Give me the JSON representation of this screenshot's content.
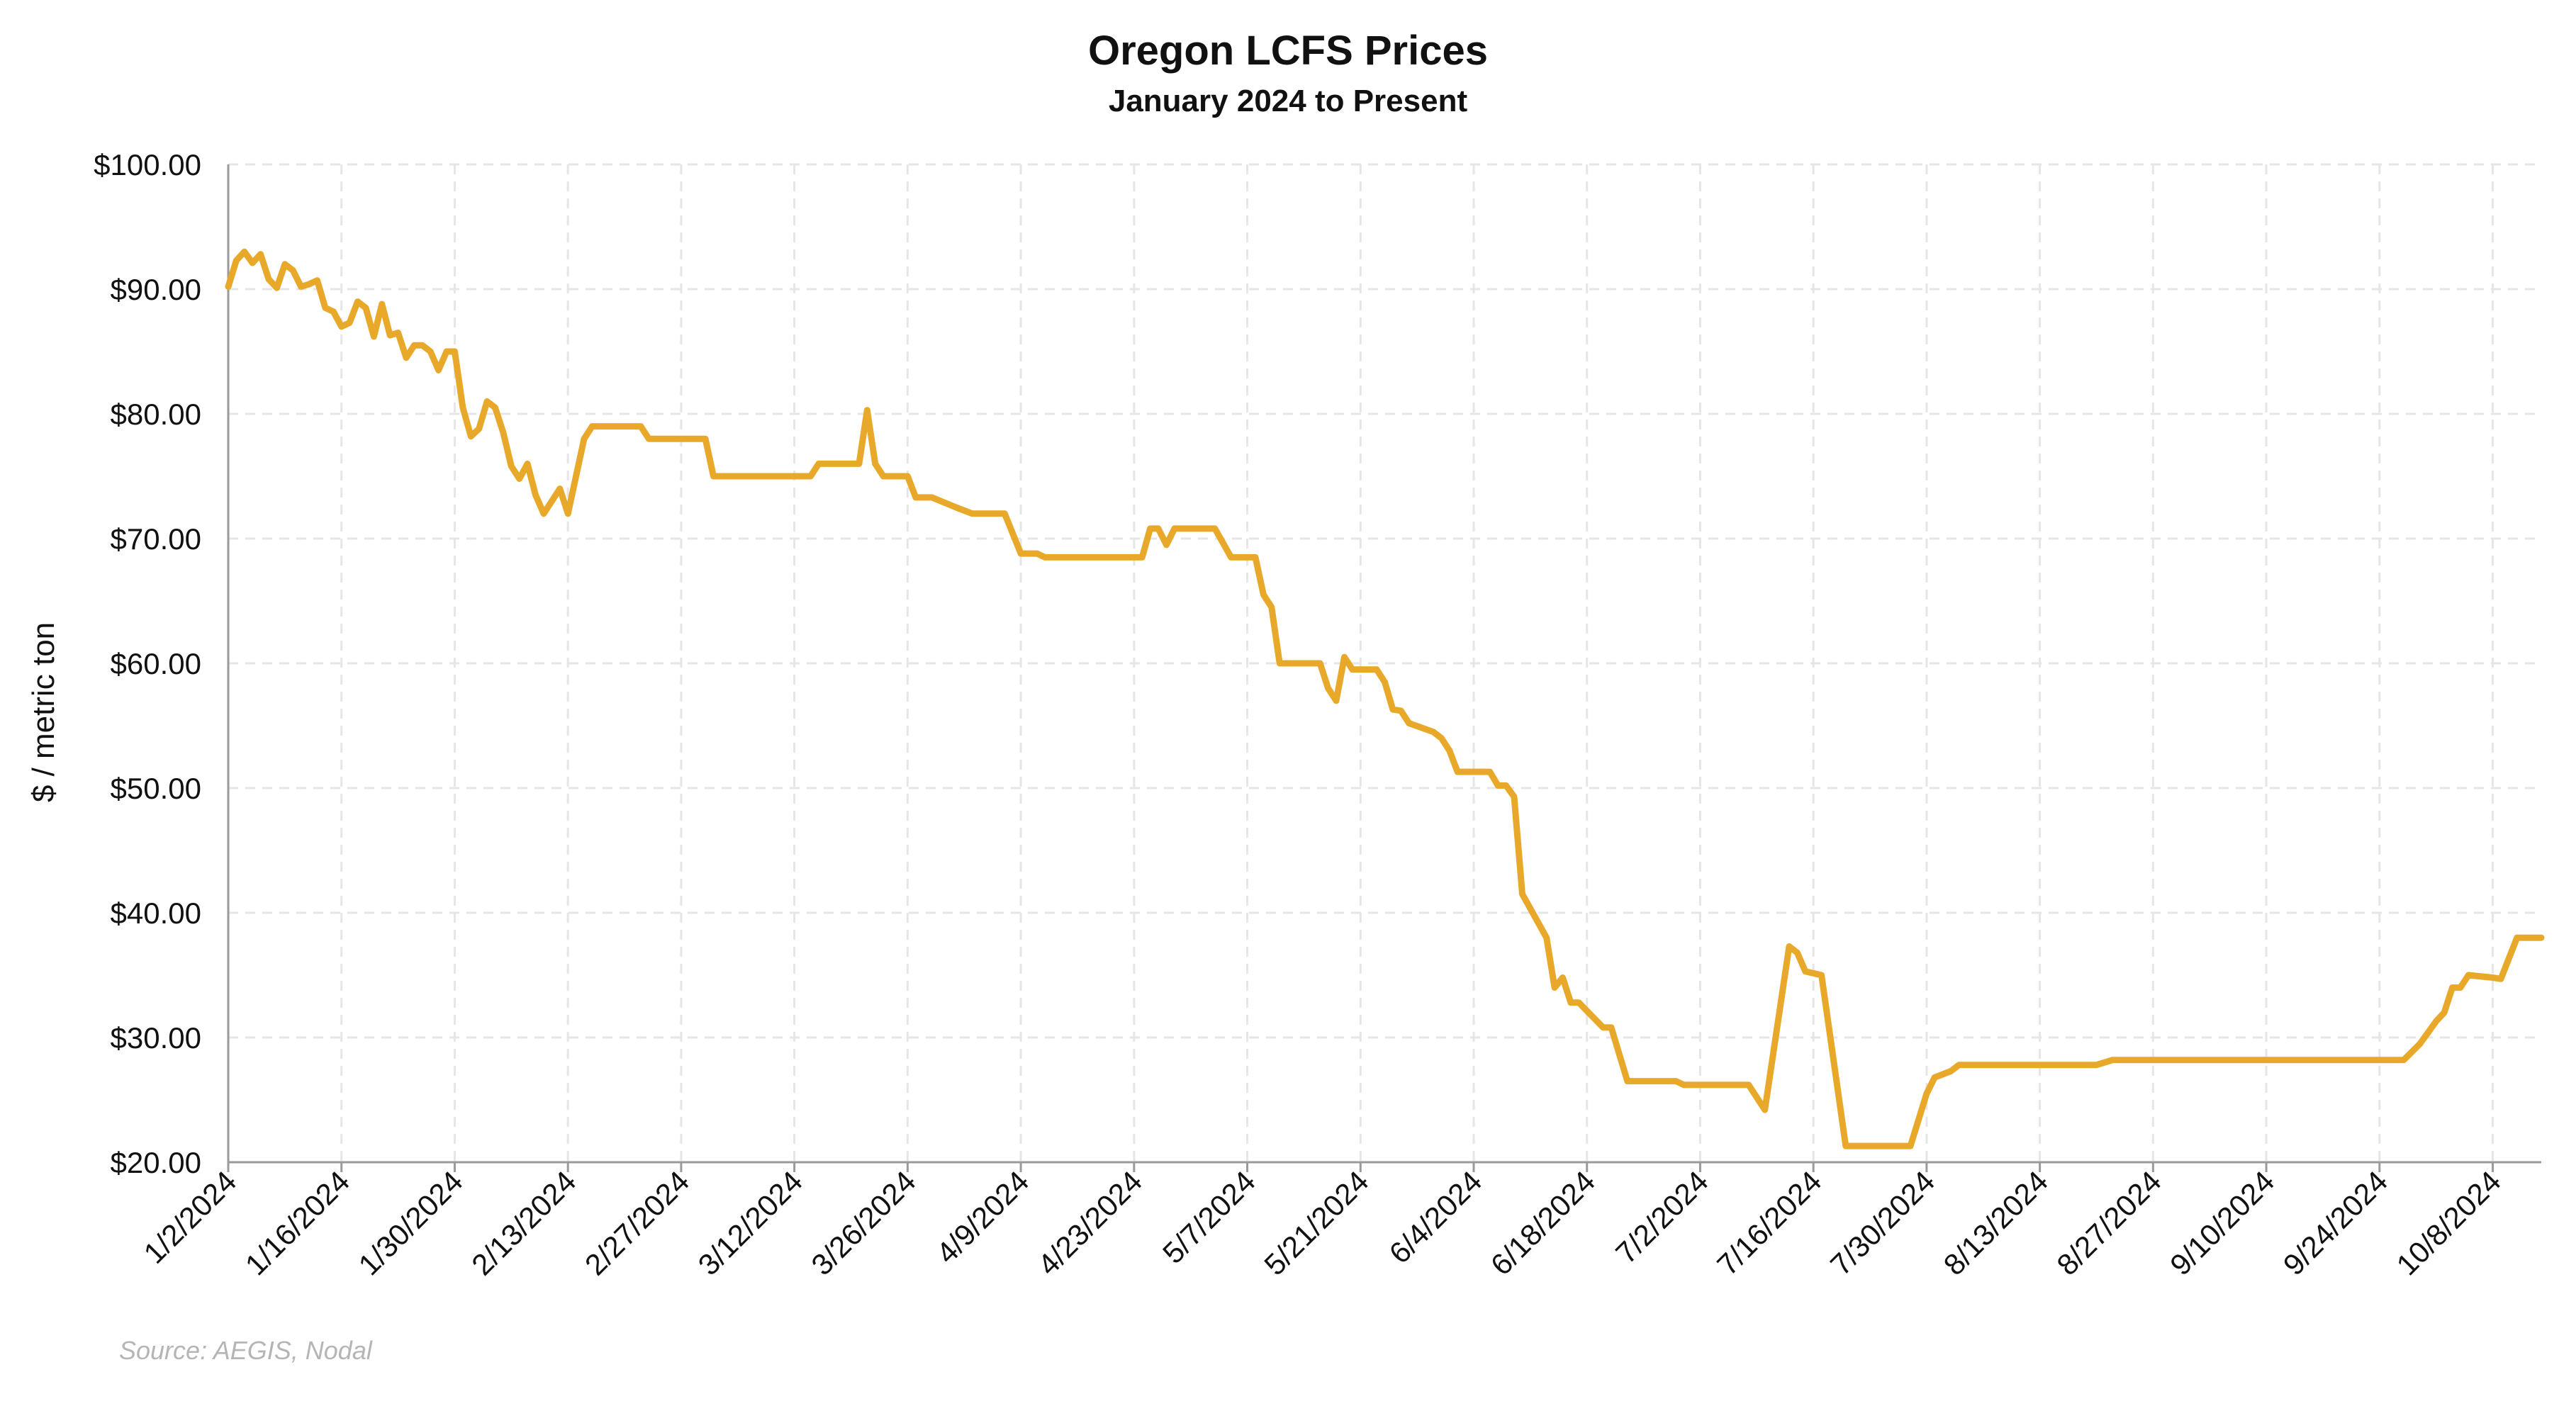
{
  "chart_data": {
    "type": "line",
    "title": "Oregon LCFS Prices",
    "subtitle": "January 2024 to Present",
    "xlabel": "",
    "ylabel": "$ / metric ton",
    "source": "Source: AEGIS, Nodal",
    "ylim": [
      20,
      100
    ],
    "yticks": [
      "$20.00",
      "$30.00",
      "$40.00",
      "$50.00",
      "$60.00",
      "$70.00",
      "$80.00",
      "$90.00",
      "$100.00"
    ],
    "ytick_values": [
      20,
      30,
      40,
      50,
      60,
      70,
      80,
      90,
      100
    ],
    "xlim": [
      "2024-01-02",
      "2024-10-14"
    ],
    "xticks": [
      "1/2/2024",
      "1/16/2024",
      "1/30/2024",
      "2/13/2024",
      "2/27/2024",
      "3/12/2024",
      "3/26/2024",
      "4/9/2024",
      "4/23/2024",
      "5/7/2024",
      "5/21/2024",
      "6/4/2024",
      "6/18/2024",
      "7/2/2024",
      "7/16/2024",
      "7/30/2024",
      "8/13/2024",
      "8/27/2024",
      "9/10/2024",
      "9/24/2024",
      "10/8/2024"
    ],
    "grid": true,
    "line_color": "#E8A92B",
    "series": [
      {
        "points": [
          [
            "2024-01-02",
            90.2
          ],
          [
            "2024-01-03",
            92.3
          ],
          [
            "2024-01-04",
            93.0
          ],
          [
            "2024-01-05",
            92.1
          ],
          [
            "2024-01-06",
            92.8
          ],
          [
            "2024-01-07",
            90.8
          ],
          [
            "2024-01-08",
            90.1
          ],
          [
            "2024-01-09",
            92.0
          ],
          [
            "2024-01-10",
            91.5
          ],
          [
            "2024-01-11",
            90.2
          ],
          [
            "2024-01-12",
            90.4
          ],
          [
            "2024-01-13",
            90.7
          ],
          [
            "2024-01-14",
            88.5
          ],
          [
            "2024-01-15",
            88.2
          ],
          [
            "2024-01-16",
            87.0
          ],
          [
            "2024-01-17",
            87.3
          ],
          [
            "2024-01-18",
            89.0
          ],
          [
            "2024-01-19",
            88.5
          ],
          [
            "2024-01-20",
            86.2
          ],
          [
            "2024-01-21",
            88.8
          ],
          [
            "2024-01-22",
            86.3
          ],
          [
            "2024-01-23",
            86.5
          ],
          [
            "2024-01-24",
            84.5
          ],
          [
            "2024-01-25",
            85.5
          ],
          [
            "2024-01-26",
            85.5
          ],
          [
            "2024-01-27",
            85.0
          ],
          [
            "2024-01-28",
            83.5
          ],
          [
            "2024-01-29",
            85.0
          ],
          [
            "2024-01-30",
            85.0
          ],
          [
            "2024-01-31",
            80.5
          ],
          [
            "2024-02-01",
            78.2
          ],
          [
            "2024-02-02",
            78.8
          ],
          [
            "2024-02-03",
            81.0
          ],
          [
            "2024-02-04",
            80.5
          ],
          [
            "2024-02-05",
            78.5
          ],
          [
            "2024-02-06",
            75.8
          ],
          [
            "2024-02-07",
            74.8
          ],
          [
            "2024-02-08",
            76.0
          ],
          [
            "2024-02-09",
            73.5
          ],
          [
            "2024-02-10",
            72.0
          ],
          [
            "2024-02-11",
            73.0
          ],
          [
            "2024-02-12",
            74.0
          ],
          [
            "2024-02-13",
            72.0
          ],
          [
            "2024-02-14",
            75.0
          ],
          [
            "2024-02-15",
            78.0
          ],
          [
            "2024-02-16",
            79.0
          ],
          [
            "2024-02-17",
            79.0
          ],
          [
            "2024-02-22",
            79.0
          ],
          [
            "2024-02-23",
            78.0
          ],
          [
            "2024-03-01",
            78.0
          ],
          [
            "2024-03-02",
            75.0
          ],
          [
            "2024-03-14",
            75.0
          ],
          [
            "2024-03-15",
            76.0
          ],
          [
            "2024-03-20",
            76.0
          ],
          [
            "2024-03-21",
            80.3
          ],
          [
            "2024-03-22",
            76.0
          ],
          [
            "2024-03-23",
            75.0
          ],
          [
            "2024-03-26",
            75.0
          ],
          [
            "2024-03-27",
            73.3
          ],
          [
            "2024-03-29",
            73.3
          ],
          [
            "2024-04-01",
            72.5
          ],
          [
            "2024-04-03",
            72.0
          ],
          [
            "2024-04-07",
            72.0
          ],
          [
            "2024-04-09",
            68.8
          ],
          [
            "2024-04-11",
            68.8
          ],
          [
            "2024-04-12",
            68.5
          ],
          [
            "2024-04-24",
            68.5
          ],
          [
            "2024-04-25",
            70.8
          ],
          [
            "2024-04-26",
            70.8
          ],
          [
            "2024-04-27",
            69.5
          ],
          [
            "2024-04-28",
            70.8
          ],
          [
            "2024-05-03",
            70.8
          ],
          [
            "2024-05-05",
            68.5
          ],
          [
            "2024-05-08",
            68.5
          ],
          [
            "2024-05-09",
            65.5
          ],
          [
            "2024-05-10",
            64.5
          ],
          [
            "2024-05-11",
            60.0
          ],
          [
            "2024-05-16",
            60.0
          ],
          [
            "2024-05-17",
            58.0
          ],
          [
            "2024-05-18",
            57.0
          ],
          [
            "2024-05-19",
            60.5
          ],
          [
            "2024-05-20",
            59.5
          ],
          [
            "2024-05-23",
            59.5
          ],
          [
            "2024-05-24",
            58.5
          ],
          [
            "2024-05-25",
            56.3
          ],
          [
            "2024-05-26",
            56.2
          ],
          [
            "2024-05-27",
            55.2
          ],
          [
            "2024-05-30",
            54.5
          ],
          [
            "2024-05-31",
            54.0
          ],
          [
            "2024-06-01",
            53.0
          ],
          [
            "2024-06-02",
            51.3
          ],
          [
            "2024-06-06",
            51.3
          ],
          [
            "2024-06-07",
            50.2
          ],
          [
            "2024-06-08",
            50.2
          ],
          [
            "2024-06-09",
            49.3
          ],
          [
            "2024-06-10",
            41.5
          ],
          [
            "2024-06-13",
            38.0
          ],
          [
            "2024-06-14",
            34.0
          ],
          [
            "2024-06-15",
            34.8
          ],
          [
            "2024-06-16",
            32.8
          ],
          [
            "2024-06-17",
            32.8
          ],
          [
            "2024-06-20",
            30.8
          ],
          [
            "2024-06-21",
            30.8
          ],
          [
            "2024-06-23",
            26.5
          ],
          [
            "2024-06-29",
            26.5
          ],
          [
            "2024-06-30",
            26.2
          ],
          [
            "2024-07-08",
            26.2
          ],
          [
            "2024-07-10",
            24.2
          ],
          [
            "2024-07-13",
            37.3
          ],
          [
            "2024-07-14",
            36.8
          ],
          [
            "2024-07-15",
            35.3
          ],
          [
            "2024-07-17",
            35.0
          ],
          [
            "2024-07-20",
            21.3
          ],
          [
            "2024-07-28",
            21.3
          ],
          [
            "2024-07-30",
            25.5
          ],
          [
            "2024-07-31",
            26.8
          ],
          [
            "2024-08-02",
            27.3
          ],
          [
            "2024-08-03",
            27.8
          ],
          [
            "2024-08-20",
            27.8
          ],
          [
            "2024-08-22",
            28.2
          ],
          [
            "2024-09-26",
            28.2
          ],
          [
            "2024-09-27",
            28.2
          ],
          [
            "2024-09-29",
            29.5
          ],
          [
            "2024-10-01",
            31.3
          ],
          [
            "2024-10-02",
            32.0
          ],
          [
            "2024-10-03",
            34.0
          ],
          [
            "2024-10-04",
            34.0
          ],
          [
            "2024-10-05",
            35.0
          ],
          [
            "2024-10-08",
            34.8
          ],
          [
            "2024-10-09",
            34.7
          ],
          [
            "2024-10-11",
            38.0
          ],
          [
            "2024-10-14",
            38.0
          ]
        ]
      }
    ]
  }
}
